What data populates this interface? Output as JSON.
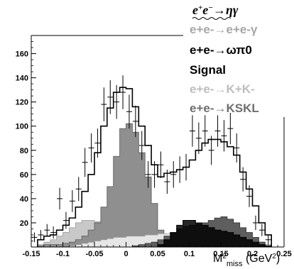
{
  "chart_data": {
    "type": "area",
    "xlabel": {
      "main": "M",
      "sup": "2",
      "sub": "miss",
      "unit_open": " (GeV",
      "unit_sup": "2",
      "unit_close": ")"
    },
    "xlim": [
      -0.15,
      0.25
    ],
    "ylim": [
      0,
      175
    ],
    "xticks": [
      "-0.15",
      "-0.1",
      "-0.05",
      "0",
      "0.05",
      "0.1",
      "0.15",
      "0.2",
      "0.25"
    ],
    "xtick_values": [
      -0.15,
      -0.1,
      -0.05,
      0,
      0.05,
      0.1,
      0.15,
      0.2,
      0.25
    ],
    "yticks": [
      "20",
      "40",
      "60",
      "80",
      "100",
      "120",
      "140",
      "160"
    ],
    "ytick_values": [
      20,
      40,
      60,
      80,
      100,
      120,
      140,
      160
    ],
    "bin_edges": [
      -0.14,
      -0.13,
      -0.12,
      -0.11,
      -0.1,
      -0.09,
      -0.08,
      -0.07,
      -0.06,
      -0.05,
      -0.04,
      -0.03,
      -0.02,
      -0.01,
      0,
      0.01,
      0.02,
      0.03,
      0.04,
      0.05,
      0.06,
      0.07,
      0.08,
      0.09,
      0.1,
      0.11,
      0.12,
      0.13,
      0.14,
      0.15,
      0.16,
      0.17,
      0.18,
      0.19,
      0.2,
      0.21,
      0.22,
      0.23
    ],
    "colors": {
      "eta_gamma": "#000000",
      "eegamma": "#c8c8c8",
      "omega_pi0": "#000000",
      "signal": "#8f8f8f",
      "kk": "#e6e6e6",
      "kskl": "#5e5e5e",
      "legend_eegamma_text": "#a6a6a6",
      "legend_kk_text": "#bdbdbd",
      "legend_kskl_text": "#6e6e6e"
    },
    "legend": {
      "eta_gamma": {
        "lhs": "e",
        "sup1": "+",
        "mid": "e",
        "sup2": "−",
        "rhs": "→ηγ"
      },
      "eegamma": "e+e-→e+e-γ",
      "omega_pi0": "e+e-→ωπ0",
      "signal": "Signal",
      "kk": "e+e-→K+K-",
      "kskl": "e+e-→KSKL"
    },
    "series": [
      {
        "name": "total",
        "values": [
          6,
          9,
          10,
          14,
          18,
          24,
          33,
          46,
          60,
          78,
          100,
          115,
          128,
          132,
          131,
          116,
          100,
          84,
          68,
          58,
          61,
          62,
          64,
          66,
          72,
          80,
          86,
          89,
          89,
          87,
          83,
          76,
          62,
          48,
          34,
          20,
          10
        ]
      },
      {
        "name": "signal",
        "values": [
          1,
          2,
          2,
          2,
          3,
          4,
          6,
          9,
          14,
          20,
          33,
          50,
          75,
          98,
          102,
          95,
          78,
          58,
          36,
          14,
          6,
          4,
          3,
          2,
          2,
          2,
          2,
          2,
          2,
          1,
          1,
          1,
          1,
          1,
          0,
          0,
          0
        ]
      },
      {
        "name": "eegamma",
        "values": [
          2,
          4,
          6,
          9,
          12,
          16,
          20,
          22,
          22,
          21,
          20,
          18,
          16,
          15,
          14,
          12,
          11,
          10,
          9,
          9,
          8,
          8,
          7,
          7,
          6,
          6,
          6,
          5,
          5,
          5,
          4,
          4,
          4,
          3,
          3,
          2,
          2
        ]
      },
      {
        "name": "kk",
        "values": [
          0,
          0,
          0,
          0,
          0,
          1,
          2,
          3,
          4,
          5,
          6,
          7,
          8,
          8,
          9,
          9,
          9,
          10,
          10,
          11,
          11,
          12,
          12,
          12,
          12,
          12,
          12,
          11,
          11,
          10,
          10,
          9,
          8,
          7,
          6,
          4,
          2
        ]
      },
      {
        "name": "kskl",
        "values": [
          0,
          0,
          0,
          0,
          0,
          0,
          0,
          0,
          0,
          0,
          0,
          0,
          0,
          0,
          0,
          1,
          2,
          3,
          4,
          6,
          9,
          12,
          15,
          17,
          18,
          19,
          20,
          22,
          24,
          25,
          23,
          20,
          16,
          12,
          8,
          4,
          1
        ]
      },
      {
        "name": "omega_pi0",
        "values": [
          0,
          0,
          0,
          0,
          0,
          0,
          0,
          0,
          0,
          0,
          0,
          0,
          0,
          0,
          0,
          0,
          0,
          0,
          0,
          2,
          6,
          12,
          18,
          22,
          22,
          20,
          18,
          16,
          14,
          13,
          12,
          10,
          8,
          6,
          4,
          2,
          1
        ]
      },
      {
        "name": "data",
        "x": [
          -0.145,
          -0.135,
          -0.125,
          -0.115,
          -0.105,
          -0.095,
          -0.085,
          -0.075,
          -0.065,
          -0.055,
          -0.045,
          -0.035,
          -0.025,
          -0.015,
          -0.005,
          0.005,
          0.015,
          0.025,
          0.035,
          0.045,
          0.055,
          0.065,
          0.075,
          0.085,
          0.095,
          0.105,
          0.115,
          0.125,
          0.135,
          0.145,
          0.155,
          0.165,
          0.175,
          0.185,
          0.195,
          0.205,
          0.215,
          0.225
        ],
        "y": [
          8,
          10,
          14,
          12,
          40,
          22,
          38,
          48,
          70,
          82,
          86,
          118,
          124,
          120,
          128,
          112,
          104,
          84,
          60,
          60,
          68,
          54,
          60,
          64,
          66,
          96,
          90,
          96,
          80,
          96,
          92,
          98,
          82,
          56,
          42,
          20,
          14,
          6
        ],
        "err": [
          4,
          4,
          5,
          5,
          9,
          7,
          9,
          10,
          12,
          12,
          12,
          14,
          14,
          14,
          14,
          14,
          13,
          12,
          11,
          11,
          11,
          10,
          11,
          11,
          11,
          13,
          13,
          13,
          12,
          13,
          13,
          13,
          12,
          10,
          9,
          6,
          5,
          4
        ]
      }
    ]
  }
}
